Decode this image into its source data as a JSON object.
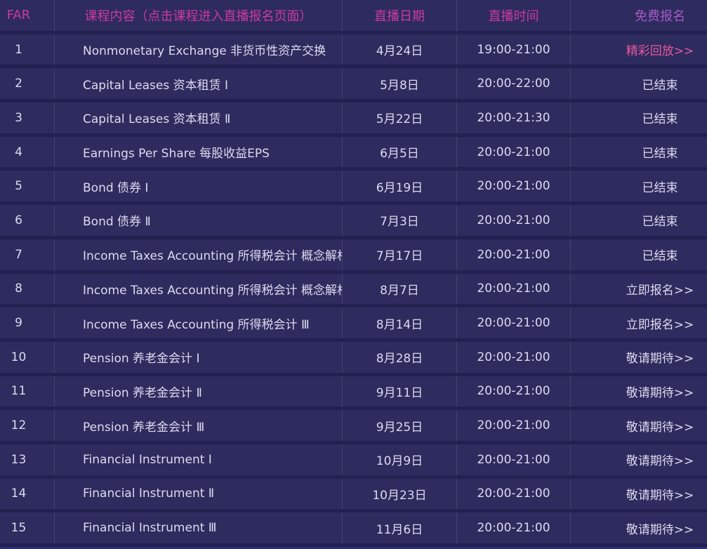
{
  "table": {
    "columns": [
      {
        "key": "num",
        "label": "FAR"
      },
      {
        "key": "course",
        "label": "课程内容（点击课程进入直播报名页面）"
      },
      {
        "key": "date",
        "label": "直播日期"
      },
      {
        "key": "time",
        "label": "直播时间"
      },
      {
        "key": "signup",
        "label": "免费报名"
      }
    ],
    "rows": [
      {
        "num": "1",
        "course": "Nonmonetary Exchange 非货币性资产交换",
        "date": "4月24日",
        "time": "19:00-21:00",
        "status": "精彩回放>>",
        "status_type": "replay"
      },
      {
        "num": "2",
        "course": "Capital Leases 资本租赁 Ⅰ",
        "date": "5月8日",
        "time": "20:00-22:00",
        "status": "已结束",
        "status_type": "ended"
      },
      {
        "num": "3",
        "course": "Capital Leases 资本租赁 Ⅱ",
        "date": "5月22日",
        "time": "20:00-21:30",
        "status": "已结束",
        "status_type": "ended"
      },
      {
        "num": "4",
        "course": "Earnings Per Share 每股收益EPS",
        "date": "6月5日",
        "time": "20:00-21:00",
        "status": "已结束",
        "status_type": "ended"
      },
      {
        "num": "5",
        "course": "Bond 债券 Ⅰ",
        "date": "6月19日",
        "time": "20:00-21:00",
        "status": "已结束",
        "status_type": "ended"
      },
      {
        "num": "6",
        "course": "Bond 债券 Ⅱ",
        "date": "7月3日",
        "time": "20:00-21:00",
        "status": "已结束",
        "status_type": "ended"
      },
      {
        "num": "7",
        "course": "Income Taxes Accounting 所得税会计 概念解析 Ⅰ",
        "date": "7月17日",
        "time": "20:00-21:00",
        "status": "已结束",
        "status_type": "ended"
      },
      {
        "num": "8",
        "course": "Income Taxes Accounting 所得税会计 概念解析 Ⅱ",
        "date": "8月7日",
        "time": "20:00-21:00",
        "status": "立即报名>>",
        "status_type": "register"
      },
      {
        "num": "9",
        "course": "Income Taxes Accounting 所得税会计 Ⅲ",
        "date": "8月14日",
        "time": "20:00-21:00",
        "status": "立即报名>>",
        "status_type": "register"
      },
      {
        "num": "10",
        "course": "Pension 养老金会计 Ⅰ",
        "date": "8月28日",
        "time": "20:00-21:00",
        "status": "敬请期待>>",
        "status_type": "upcoming"
      },
      {
        "num": "11",
        "course": "Pension 养老金会计 Ⅱ",
        "date": "9月11日",
        "time": "20:00-21:00",
        "status": "敬请期待>>",
        "status_type": "upcoming"
      },
      {
        "num": "12",
        "course": "Pension 养老金会计 Ⅲ",
        "date": "9月25日",
        "time": "20:00-21:00",
        "status": "敬请期待>>",
        "status_type": "upcoming"
      },
      {
        "num": "13",
        "course": "Financial Instrument Ⅰ",
        "date": "10月9日",
        "time": "20:00-21:00",
        "status": "敬请期待>>",
        "status_type": "upcoming"
      },
      {
        "num": "14",
        "course": "Financial Instrument Ⅱ",
        "date": "10月23日",
        "time": "20:00-21:00",
        "status": "敬请期待>>",
        "status_type": "upcoming"
      },
      {
        "num": "15",
        "course": "Financial Instrument Ⅲ",
        "date": "11月6日",
        "time": "20:00-21:00",
        "status": "敬请期待>>",
        "status_type": "upcoming"
      }
    ]
  },
  "colors": {
    "background_gap": "#232052",
    "cell_background": "#2e2b5e",
    "vertical_separator": "#454270",
    "header_magenta": "#cb3aa1",
    "signup_header_purple": "#a65ac6",
    "body_text": "#dcdbf0",
    "replay_link_pink": "#e8579f",
    "bottom_edge_blue": "#2b3174"
  }
}
